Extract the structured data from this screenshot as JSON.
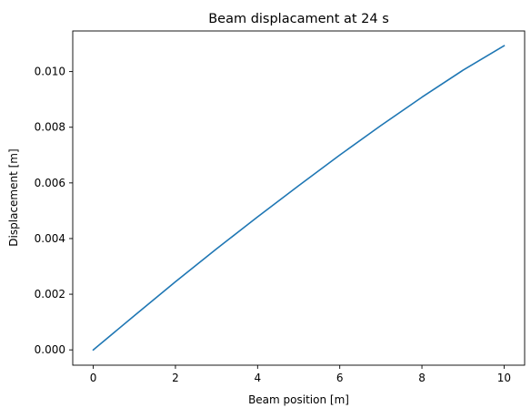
{
  "chart_data": {
    "type": "line",
    "title": "Beam displacament at 24 s",
    "xlabel": "Beam position [m]",
    "ylabel": "Displacement [m]",
    "xlim": [
      -0.5,
      10.5
    ],
    "ylim": [
      -0.00055,
      0.01146
    ],
    "xticks": [
      0,
      2,
      4,
      6,
      8,
      10
    ],
    "xtick_labels": [
      "0",
      "2",
      "4",
      "6",
      "8",
      "10"
    ],
    "yticks": [
      0.0,
      0.002,
      0.004,
      0.006,
      0.008,
      0.01
    ],
    "ytick_labels": [
      "0.000",
      "0.002",
      "0.004",
      "0.006",
      "0.008",
      "0.010"
    ],
    "grid": false,
    "series": [
      {
        "color": "#1f77b4",
        "x": [
          0,
          1,
          2,
          3,
          4,
          5,
          6,
          7,
          8,
          9,
          10
        ],
        "y": [
          0.0,
          0.00123,
          0.00245,
          0.00363,
          0.00478,
          0.0059,
          0.007,
          0.00806,
          0.00908,
          0.01005,
          0.01093
        ]
      }
    ]
  }
}
